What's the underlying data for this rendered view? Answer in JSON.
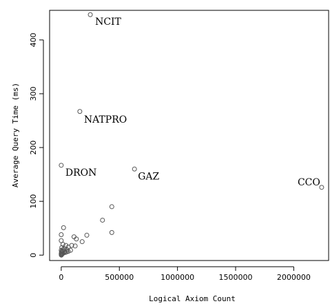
{
  "chart_data": {
    "type": "scatter",
    "title": "",
    "xlabel": "Logical Axiom Count",
    "ylabel": "Average Query Time (ms)",
    "xlim": [
      -100000,
      2300000
    ],
    "ylim": [
      -10,
      455
    ],
    "xticks": [
      0,
      500000,
      1000000,
      1500000,
      2000000
    ],
    "xtick_labels": [
      "0",
      "500000",
      "1000000",
      "1500000",
      "2000000"
    ],
    "yticks": [
      0,
      100,
      200,
      300,
      400
    ],
    "ytick_labels": [
      "0",
      "100",
      "200",
      "300",
      "400"
    ],
    "grid": false,
    "legend": "none",
    "marker": "open-circle",
    "marker_color": "#555555",
    "points": [
      {
        "x": 250000,
        "y": 447
      },
      {
        "x": 160000,
        "y": 267
      },
      {
        "x": 0,
        "y": 167
      },
      {
        "x": 630000,
        "y": 160
      },
      {
        "x": 2240000,
        "y": 126
      },
      {
        "x": 435000,
        "y": 90
      },
      {
        "x": 355000,
        "y": 65
      },
      {
        "x": 435000,
        "y": 42
      },
      {
        "x": 20000,
        "y": 51
      },
      {
        "x": 220000,
        "y": 37
      },
      {
        "x": 0,
        "y": 38
      },
      {
        "x": 110000,
        "y": 34
      },
      {
        "x": 130000,
        "y": 30
      },
      {
        "x": 180000,
        "y": 25
      },
      {
        "x": 0,
        "y": 27
      },
      {
        "x": 15000,
        "y": 20
      },
      {
        "x": 40000,
        "y": 18
      },
      {
        "x": 90000,
        "y": 18
      },
      {
        "x": 120000,
        "y": 17
      },
      {
        "x": 60000,
        "y": 15
      },
      {
        "x": 5000,
        "y": 14
      },
      {
        "x": 25000,
        "y": 12
      },
      {
        "x": 50000,
        "y": 10
      },
      {
        "x": 80000,
        "y": 9
      },
      {
        "x": 0,
        "y": 9
      },
      {
        "x": 10000,
        "y": 8
      },
      {
        "x": 30000,
        "y": 7
      },
      {
        "x": 45000,
        "y": 6
      },
      {
        "x": 5000,
        "y": 5
      },
      {
        "x": 20000,
        "y": 4
      },
      {
        "x": 0,
        "y": 3
      },
      {
        "x": 8000,
        "y": 2
      },
      {
        "x": 3000,
        "y": 1
      },
      {
        "x": 0,
        "y": 1
      },
      {
        "x": 12000,
        "y": 3
      },
      {
        "x": 35000,
        "y": 5
      },
      {
        "x": 60000,
        "y": 7
      },
      {
        "x": 2000,
        "y": 6
      },
      {
        "x": 15000,
        "y": 10
      },
      {
        "x": 1000,
        "y": 0
      }
    ],
    "annotations": [
      {
        "text": "NCIT",
        "x": 250000,
        "y": 447,
        "anchor": "start",
        "dx": 7,
        "dy": 15
      },
      {
        "text": "NATPRO",
        "x": 160000,
        "y": 267,
        "anchor": "start",
        "dx": 6,
        "dy": 16
      },
      {
        "text": "DRON",
        "x": 0,
        "y": 167,
        "anchor": "start",
        "dx": 6,
        "dy": 15
      },
      {
        "text": "GAZ",
        "x": 630000,
        "y": 160,
        "anchor": "start",
        "dx": 5,
        "dy": 15
      },
      {
        "text": "CCO",
        "x": 2240000,
        "y": 126,
        "anchor": "end",
        "dx": -2,
        "dy": -3
      }
    ]
  }
}
